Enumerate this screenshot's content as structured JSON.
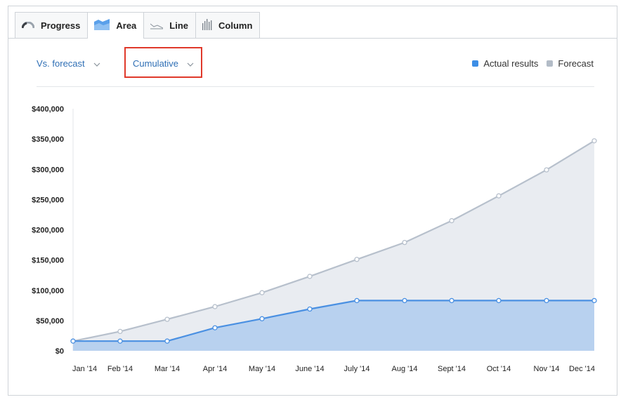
{
  "tabs": [
    {
      "label": "Progress",
      "icon": "gauge-icon",
      "active": false
    },
    {
      "label": "Area",
      "icon": "area-chart-icon",
      "active": true
    },
    {
      "label": "Line",
      "icon": "line-chart-icon",
      "active": false
    },
    {
      "label": "Column",
      "icon": "column-chart-icon",
      "active": false
    }
  ],
  "controls": {
    "comparison_label": "Vs. forecast",
    "mode_label": "Cumulative"
  },
  "legend": {
    "actual_label": "Actual results",
    "forecast_label": "Forecast"
  },
  "colors": {
    "actual_line": "#4a90e2",
    "actual_fill": "#b8d1ef",
    "forecast_line": "#b7c0cc",
    "forecast_fill": "#e9ecf1",
    "legend_actual": "#3d8ee6",
    "legend_forecast": "#b3bcc7",
    "highlight_border": "#e0392b"
  },
  "chart_data": {
    "type": "area",
    "categories": [
      "Jan '14",
      "Feb '14",
      "Mar '14",
      "Apr '14",
      "May '14",
      "June '14",
      "July '14",
      "Aug '14",
      "Sept '14",
      "Oct '14",
      "Nov '14",
      "Dec '14"
    ],
    "series": [
      {
        "name": "Forecast",
        "values": [
          16000,
          32000,
          52000,
          73000,
          96000,
          123000,
          151000,
          179000,
          215000,
          256000,
          299000,
          347000
        ]
      },
      {
        "name": "Actual results",
        "values": [
          16000,
          16000,
          16000,
          38000,
          53000,
          69000,
          83000,
          83000,
          83000,
          83000,
          83000,
          83000
        ]
      }
    ],
    "yticks": [
      "$0",
      "$50,000",
      "$100,000",
      "$150,000",
      "$200,000",
      "$250,000",
      "$300,000",
      "$350,000",
      "$400,000"
    ],
    "ylim": [
      0,
      400000
    ],
    "legend_position": "top-right"
  }
}
